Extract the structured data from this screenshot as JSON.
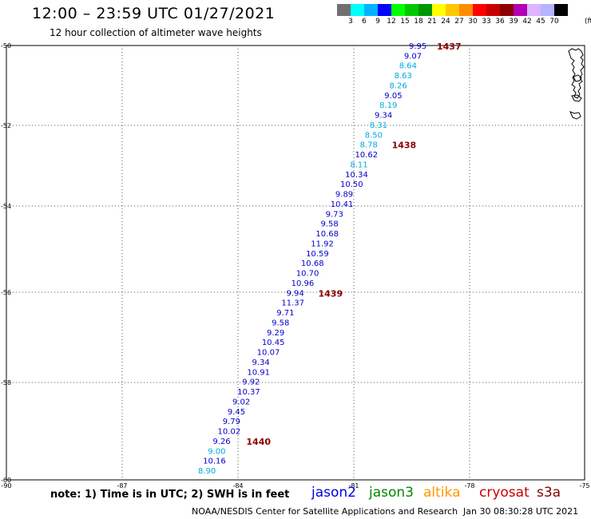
{
  "title": "12:00 – 23:59 UTC 01/27/2021",
  "subtitle": "12 hour collection of altimeter wave heights",
  "legend": {
    "colors": [
      "#707070",
      "#00ffff",
      "#00b4ff",
      "#0000ff",
      "#00ff00",
      "#00c800",
      "#009600",
      "#ffff00",
      "#ffc800",
      "#ff8c00",
      "#ff0000",
      "#c80000",
      "#8c0000",
      "#b400b4",
      "#dcb4ff",
      "#b4b4ff",
      "#000000"
    ],
    "labels": [
      "3",
      "6",
      "9",
      "12",
      "15",
      "18",
      "21",
      "24",
      "27",
      "30",
      "33",
      "36",
      "39",
      "42",
      "45",
      "70"
    ],
    "unit": "(ft)"
  },
  "axes": {
    "x_ticks": [
      "-90",
      "-87",
      "-84",
      "-81",
      "-78",
      "-75"
    ],
    "y_ticks": [
      "-50",
      "-52",
      "-54",
      "-56",
      "-58",
      "-60"
    ]
  },
  "map": {
    "lon_range": [
      -90,
      -75
    ],
    "lat_range": [
      -60,
      -50
    ],
    "lat_gridlines": [
      -50,
      -52,
      -54,
      -56,
      -58,
      -60
    ],
    "lon_gridlines": [
      -87,
      -84,
      -81,
      -78
    ],
    "observations": [
      {
        "value": "9.95",
        "color": "#0000cc"
      },
      {
        "value": "9.07",
        "color": "#0000cc"
      },
      {
        "value": "8.64",
        "color": "#00aadd"
      },
      {
        "value": "8.63",
        "color": "#00aadd"
      },
      {
        "value": "8.26",
        "color": "#00aadd"
      },
      {
        "value": "9.05",
        "color": "#0000cc"
      },
      {
        "value": "8.19",
        "color": "#00aadd"
      },
      {
        "value": "9.34",
        "color": "#0000cc"
      },
      {
        "value": "8.31",
        "color": "#00aadd"
      },
      {
        "value": "8.50",
        "color": "#00aadd"
      },
      {
        "value": "8.78",
        "color": "#00aadd"
      },
      {
        "value": "10.62",
        "color": "#0000cc"
      },
      {
        "value": "8.11",
        "color": "#00aadd"
      },
      {
        "value": "10.34",
        "color": "#0000cc"
      },
      {
        "value": "10.50",
        "color": "#0000cc"
      },
      {
        "value": "9.89",
        "color": "#0000cc"
      },
      {
        "value": "10.41",
        "color": "#0000cc"
      },
      {
        "value": "9.73",
        "color": "#0000cc"
      },
      {
        "value": "9.58",
        "color": "#0000cc"
      },
      {
        "value": "10.68",
        "color": "#0000cc"
      },
      {
        "value": "11.92",
        "color": "#0000cc"
      },
      {
        "value": "10.59",
        "color": "#0000cc"
      },
      {
        "value": "10.68",
        "color": "#0000cc"
      },
      {
        "value": "10.70",
        "color": "#0000cc"
      },
      {
        "value": "10.96",
        "color": "#0000cc"
      },
      {
        "value": "9.94",
        "color": "#0000cc"
      },
      {
        "value": "11.37",
        "color": "#0000cc"
      },
      {
        "value": "9.71",
        "color": "#0000cc"
      },
      {
        "value": "9.58",
        "color": "#0000cc"
      },
      {
        "value": "9.29",
        "color": "#0000cc"
      },
      {
        "value": "10.45",
        "color": "#0000cc"
      },
      {
        "value": "10.07",
        "color": "#0000cc"
      },
      {
        "value": "9.34",
        "color": "#0000cc"
      },
      {
        "value": "10.91",
        "color": "#0000cc"
      },
      {
        "value": "9.92",
        "color": "#0000cc"
      },
      {
        "value": "10.37",
        "color": "#0000cc"
      },
      {
        "value": "9.02",
        "color": "#0000cc"
      },
      {
        "value": "9.45",
        "color": "#0000cc"
      },
      {
        "value": "9.79",
        "color": "#0000cc"
      },
      {
        "value": "10.02",
        "color": "#0000cc"
      },
      {
        "value": "9.26",
        "color": "#0000cc"
      },
      {
        "value": "9.00",
        "color": "#00aadd"
      },
      {
        "value": "10.16",
        "color": "#0000cc"
      },
      {
        "value": "8.90",
        "color": "#00aadd"
      }
    ],
    "time_labels": [
      "1437",
      "1438",
      "1439",
      "1440"
    ],
    "time_label_color": "#8b0000"
  },
  "note": "note:  1) Time is in UTC;  2) SWH is in feet",
  "satellites": [
    {
      "name": "jason2",
      "color": "#0000dd"
    },
    {
      "name": "jason3",
      "color": "#008800"
    },
    {
      "name": "altika",
      "color": "#ff9900"
    },
    {
      "name": "cryosat",
      "color": "#cc0000"
    },
    {
      "name": "s3a",
      "color": "#880000"
    }
  ],
  "footer": "NOAA/NESDIS Center for Satellite Applications and Research",
  "timestamp": "Jan 30 08:30:28 UTC 2021"
}
